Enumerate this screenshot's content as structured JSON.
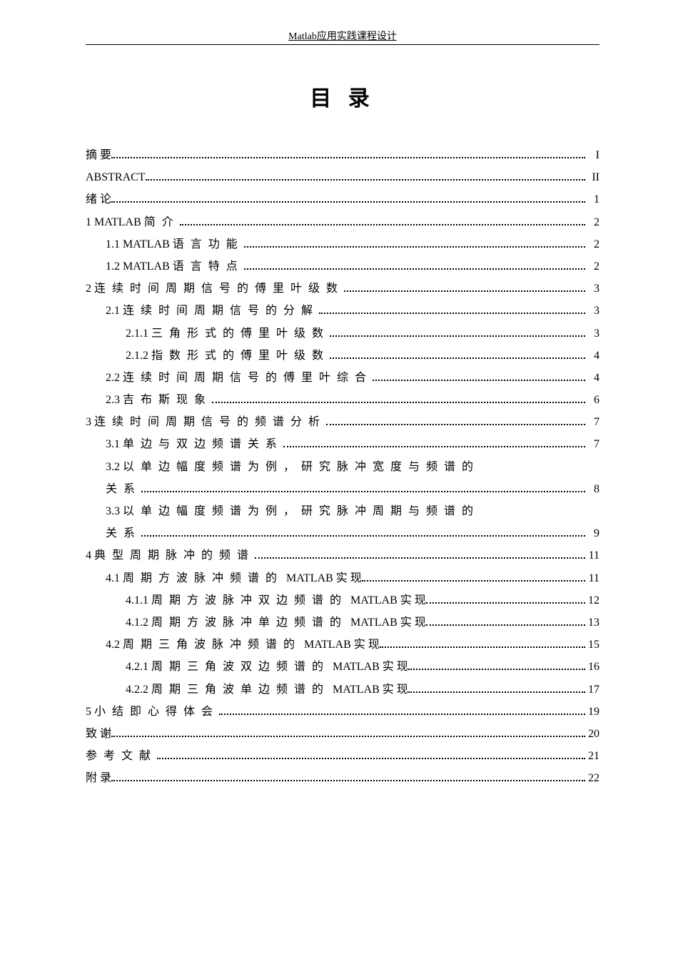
{
  "header": "Matlab应用实践课程设计",
  "title": "目 录",
  "entries": [
    {
      "label": "摘 要",
      "page": "I",
      "indent": 0,
      "spaced": false,
      "eng": false
    },
    {
      "label": "ABSTRACT",
      "page": "II",
      "indent": 0,
      "spaced": false,
      "eng": true
    },
    {
      "label": "绪 论",
      "page": "1",
      "indent": 0,
      "spaced": false,
      "eng": false
    },
    {
      "label": "1 MATLAB 简介",
      "page": "2",
      "indent": 0,
      "spaced": true,
      "eng": false,
      "prefix": "1 MATLAB ",
      "rest": "简介"
    },
    {
      "label": "1.1 MATLAB 语言功能",
      "page": "2",
      "indent": 1,
      "spaced": true,
      "eng": false,
      "prefix": "1.1 MATLAB ",
      "rest": "语言功能"
    },
    {
      "label": "1.2 MATLAB 语言特点",
      "page": "2",
      "indent": 1,
      "spaced": true,
      "eng": false,
      "prefix": "1.2 MATLAB ",
      "rest": "语言特点"
    },
    {
      "label": "2 连续时间周期信号的傅里叶级数",
      "page": "3",
      "indent": 0,
      "spaced": true,
      "eng": false,
      "prefix": "2 ",
      "rest": "连续时间周期信号的傅里叶级数"
    },
    {
      "label": "2.1 连续时间周期信号的分解",
      "page": "3",
      "indent": 1,
      "spaced": true,
      "eng": false,
      "prefix": "2.1 ",
      "rest": "连续时间周期信号的分解"
    },
    {
      "label": "2.1.1 三角形式的傅里叶级数",
      "page": "3",
      "indent": 2,
      "spaced": true,
      "eng": false,
      "prefix": "2.1.1 ",
      "rest": "三角形式的傅里叶级数"
    },
    {
      "label": "2.1.2 指数形式的傅里叶级数",
      "page": "4",
      "indent": 2,
      "spaced": true,
      "eng": false,
      "prefix": "2.1.2 ",
      "rest": "指数形式的傅里叶级数"
    },
    {
      "label": "2.2 连续时间周期信号的傅里叶综合",
      "page": "4",
      "indent": 1,
      "spaced": true,
      "eng": false,
      "prefix": "2.2 ",
      "rest": "连续时间周期信号的傅里叶综合"
    },
    {
      "label": "2.3 吉布斯现象",
      "page": "6",
      "indent": 1,
      "spaced": true,
      "eng": false,
      "prefix": "2.3 ",
      "rest": "吉布斯现象"
    },
    {
      "label": "3 连续时间周期信号的频谱分析",
      "page": "7",
      "indent": 0,
      "spaced": true,
      "eng": false,
      "prefix": "3 ",
      "rest": "连续时间周期信号的频谱分析"
    },
    {
      "label": "3.1 单边与双边频谱关系",
      "page": "7",
      "indent": 1,
      "spaced": true,
      "eng": false,
      "prefix": "3.1 ",
      "rest": "单边与双边频谱关系"
    },
    {
      "label": "3.2 以单边幅度频谱为例，研究脉冲宽度与频谱的",
      "page": "",
      "indent": 1,
      "spaced": true,
      "eng": false,
      "prefix": "3.2 ",
      "rest": "以单边幅度频谱为例，研究脉冲宽度与频谱的",
      "wrap": true
    },
    {
      "label": "关系",
      "page": "8",
      "indent": 1,
      "spaced": true,
      "eng": false,
      "prefix": "",
      "rest": "关系"
    },
    {
      "label": "3.3 以单边幅度频谱为例，研究脉冲周期与频谱的",
      "page": "",
      "indent": 1,
      "spaced": true,
      "eng": false,
      "prefix": "3.3 ",
      "rest": "以单边幅度频谱为例，研究脉冲周期与频谱的",
      "wrap": true
    },
    {
      "label": "关系",
      "page": "9",
      "indent": 1,
      "spaced": true,
      "eng": false,
      "prefix": "",
      "rest": "关系"
    },
    {
      "label": "4 典型周期脉冲的频谱",
      "page": "11",
      "indent": 0,
      "spaced": true,
      "eng": false,
      "prefix": "4 ",
      "rest": "典型周期脉冲的频谱"
    },
    {
      "label": "4.1 周期方波脉冲频谱的 MATLAB 实现",
      "page": "11",
      "indent": 1,
      "spaced": true,
      "eng": false,
      "prefix": "4.1 ",
      "rest": "周期方波脉冲频谱的",
      "suffix": " MATLAB 实 现"
    },
    {
      "label": "4.1.1 周期方波脉冲双边频谱的 MATLAB 实现",
      "page": "12",
      "indent": 2,
      "spaced": true,
      "eng": false,
      "prefix": "4.1.1 ",
      "rest": "周期方波脉冲双边频谱的",
      "suffix": " MATLAB 实 现"
    },
    {
      "label": "4.1.2 周期方波脉冲单边频谱的 MATLAB 实现",
      "page": "13",
      "indent": 2,
      "spaced": true,
      "eng": false,
      "prefix": "4.1.2 ",
      "rest": "周期方波脉冲单边频谱的",
      "suffix": " MATLAB 实 现"
    },
    {
      "label": "4.2 周期三角波脉冲频谱的 MATLAB 实现",
      "page": "15",
      "indent": 1,
      "spaced": true,
      "eng": false,
      "prefix": "4.2 ",
      "rest": "周期三角波脉冲频谱的",
      "suffix": " MATLAB 实 现"
    },
    {
      "label": "4.2.1 周期三角波双边频谱的 MATLAB 实现",
      "page": "16",
      "indent": 2,
      "spaced": true,
      "eng": false,
      "prefix": "4.2.1 ",
      "rest": "周期三角波双边频谱的",
      "suffix": " MATLAB 实 现"
    },
    {
      "label": "4.2.2 周期三角波单边频谱的 MATLAB 实现",
      "page": "17",
      "indent": 2,
      "spaced": true,
      "eng": false,
      "prefix": "4.2.2 ",
      "rest": "周期三角波单边频谱的",
      "suffix": " MATLAB 实 现"
    },
    {
      "label": "5 小结即心得体会",
      "page": "19",
      "indent": 0,
      "spaced": true,
      "eng": false,
      "prefix": "5 ",
      "rest": "小结即心得体会"
    },
    {
      "label": "致 谢",
      "page": "20",
      "indent": 0,
      "spaced": false,
      "eng": false
    },
    {
      "label": "参考文献",
      "page": "21",
      "indent": 0,
      "spaced": true,
      "eng": false,
      "prefix": "",
      "rest": "参考文献"
    },
    {
      "label": "附 录",
      "page": "22",
      "indent": 0,
      "spaced": false,
      "eng": false
    }
  ]
}
